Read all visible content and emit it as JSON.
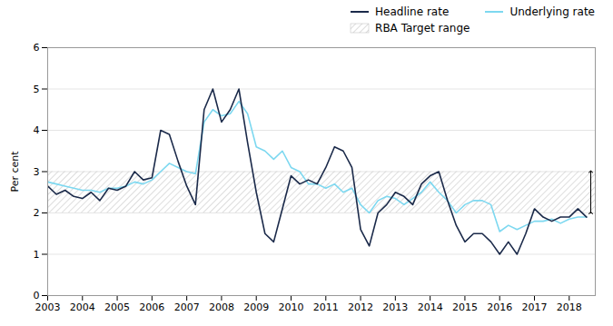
{
  "chart_data": {
    "type": "line",
    "x": [
      2003.0,
      2003.25,
      2003.5,
      2003.75,
      2004.0,
      2004.25,
      2004.5,
      2004.75,
      2005.0,
      2005.25,
      2005.5,
      2005.75,
      2006.0,
      2006.25,
      2006.5,
      2006.75,
      2007.0,
      2007.25,
      2007.5,
      2007.75,
      2008.0,
      2008.25,
      2008.5,
      2008.75,
      2009.0,
      2009.25,
      2009.5,
      2009.75,
      2010.0,
      2010.25,
      2010.5,
      2010.75,
      2011.0,
      2011.25,
      2011.5,
      2011.75,
      2012.0,
      2012.25,
      2012.5,
      2012.75,
      2013.0,
      2013.25,
      2013.5,
      2013.75,
      2014.0,
      2014.25,
      2014.5,
      2014.75,
      2015.0,
      2015.25,
      2015.5,
      2015.75,
      2016.0,
      2016.25,
      2016.5,
      2016.75,
      2017.0,
      2017.25,
      2017.5,
      2017.75,
      2018.0,
      2018.25,
      2018.5
    ],
    "series": [
      {
        "name": "Headline rate",
        "color": "#1b2a4a",
        "values": [
          2.65,
          2.45,
          2.55,
          2.4,
          2.35,
          2.5,
          2.3,
          2.6,
          2.55,
          2.65,
          3.0,
          2.8,
          2.85,
          4.0,
          3.9,
          3.25,
          2.65,
          2.2,
          4.5,
          5.0,
          4.2,
          4.5,
          5.0,
          3.7,
          2.5,
          1.5,
          1.3,
          2.1,
          2.9,
          2.7,
          2.8,
          2.7,
          3.1,
          3.6,
          3.5,
          3.1,
          1.6,
          1.2,
          2.0,
          2.2,
          2.5,
          2.4,
          2.2,
          2.7,
          2.9,
          3.0,
          2.3,
          1.7,
          1.3,
          1.5,
          1.5,
          1.3,
          1.0,
          1.3,
          1.0,
          1.5,
          2.1,
          1.9,
          1.8,
          1.9,
          1.9,
          2.1,
          1.9
        ]
      },
      {
        "name": "Underlying rate",
        "color": "#7dd8f0",
        "values": [
          2.75,
          2.7,
          2.65,
          2.6,
          2.55,
          2.55,
          2.5,
          2.6,
          2.6,
          2.65,
          2.75,
          2.7,
          2.8,
          3.0,
          3.2,
          3.1,
          3.0,
          2.95,
          4.2,
          4.5,
          4.35,
          4.4,
          4.7,
          4.4,
          3.6,
          3.5,
          3.3,
          3.5,
          3.1,
          3.0,
          2.7,
          2.7,
          2.6,
          2.7,
          2.5,
          2.6,
          2.2,
          2.0,
          2.3,
          2.4,
          2.35,
          2.2,
          2.35,
          2.5,
          2.75,
          2.5,
          2.3,
          2.0,
          2.2,
          2.3,
          2.3,
          2.2,
          1.55,
          1.7,
          1.6,
          1.7,
          1.8,
          1.8,
          1.85,
          1.75,
          1.85,
          1.9,
          1.9
        ]
      }
    ],
    "target_band": {
      "name": "RBA Target range",
      "low": 2.0,
      "high": 3.0
    },
    "arrow": {
      "x": 2018.62,
      "y_start": 2.0,
      "y_end": 3.0
    },
    "ylabel": "Per cent",
    "xlim": [
      2003,
      2018.75
    ],
    "xticks": [
      2003,
      2004,
      2005,
      2006,
      2007,
      2008,
      2009,
      2010,
      2011,
      2012,
      2013,
      2014,
      2015,
      2016,
      2017,
      2018
    ],
    "ylim": [
      0,
      6
    ],
    "yticks": [
      0,
      1,
      2,
      3,
      4,
      5,
      6
    ],
    "grid": true,
    "legend": "upper right"
  }
}
